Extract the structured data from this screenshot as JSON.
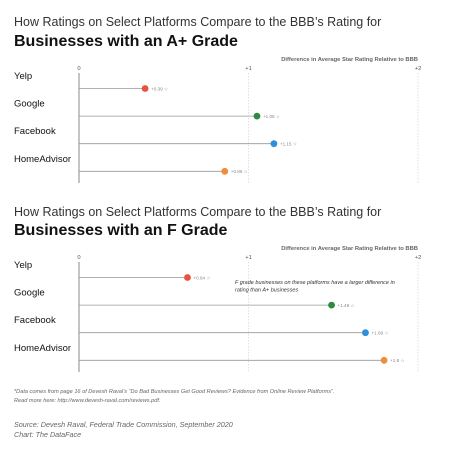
{
  "charts": [
    {
      "title_light": "How Ratings on Select Platforms Compare to the BBB’s Rating for",
      "title_bold": "Businesses with an A+ Grade"
    },
    {
      "title_light": "How Ratings on Select Platforms Compare to the BBB’s Rating for",
      "title_bold": "Businesses with an F Grade"
    }
  ],
  "chart_data": [
    {
      "type": "lollipop",
      "title": "Businesses with an A+ Grade",
      "xlabel": "Difference in Average Star Rating Relative to BBB",
      "xlim": [
        0,
        2
      ],
      "ticks": [
        "0",
        "+1",
        "+2"
      ],
      "grid": true,
      "categories": [
        "Yelp",
        "Google",
        "Facebook",
        "HomeAdvisor"
      ],
      "values": [
        0.39,
        1.05,
        1.15,
        0.86
      ],
      "value_labels": [
        "+0.39",
        "+1.05",
        "+1.15",
        "+0.86"
      ],
      "colors": [
        "#e8533f",
        "#2e8b3e",
        "#2f8fd8",
        "#f08c3a"
      ],
      "annotation": ""
    },
    {
      "type": "lollipop",
      "title": "Businesses with an F Grade",
      "xlabel": "Difference in Average Star Rating Relative to BBB",
      "xlim": [
        0,
        2
      ],
      "ticks": [
        "0",
        "+1",
        "+2"
      ],
      "grid": true,
      "categories": [
        "Yelp",
        "Google",
        "Facebook",
        "HomeAdvisor"
      ],
      "values": [
        0.64,
        1.49,
        1.69,
        1.8
      ],
      "value_labels": [
        "+0.64",
        "+1.49",
        "+1.69",
        "+1.8"
      ],
      "colors": [
        "#e8533f",
        "#2e8b3e",
        "#2f8fd8",
        "#f08c3a"
      ],
      "annotation": [
        "F grade businesses on these platforms have a larger difference in",
        "rating than A+ businesses"
      ]
    }
  ],
  "footer": {
    "note_1": "*Data comes from page 16 of Devesh Raval’s “Do Bad Businesses Get Good Reviews? Evidence from Online Review Platforms”.",
    "note_2": "Read more here: http://www.devesh-raval.com/reviews.pdf.",
    "source": "Source: Devesh Raval, Federal Trade Commission, September 2020",
    "credit": "Chart: The DataFace"
  }
}
